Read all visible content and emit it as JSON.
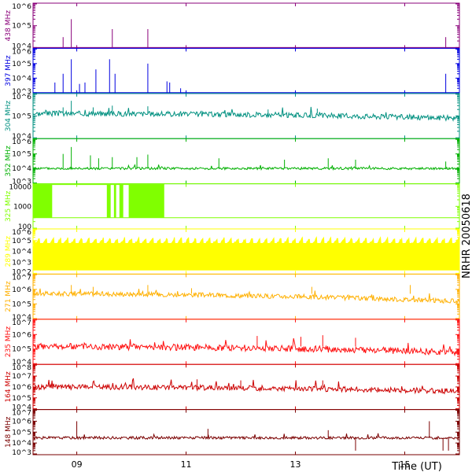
{
  "chart_data": {
    "type": "line",
    "station_label": "NRHR 20050618",
    "x_axis_label": "Time (UT)",
    "x_tick_labels": [
      "09",
      "11",
      "13",
      "15"
    ],
    "x_tick_hours": [
      9,
      11,
      13,
      15
    ],
    "x_range_hours": [
      8.2,
      16.0
    ],
    "panels": [
      {
        "freq_label": "438 MHz",
        "color": "#8a007a",
        "log_scale": true,
        "ylim": [
          10000,
          1000000
        ],
        "yticks": [
          10000,
          100000,
          1000000
        ],
        "ytick_labels": [
          "10^4",
          "10^5",
          "10^6"
        ],
        "baseline": 10000,
        "spikes": [
          [
            8.75,
            30000
          ],
          [
            8.9,
            200000
          ],
          [
            9.65,
            70000
          ],
          [
            10.3,
            70000
          ],
          [
            15.75,
            30000
          ]
        ],
        "style": "spikes"
      },
      {
        "freq_label": "397 MHz",
        "color": "#0000e0",
        "log_scale": true,
        "ylim": [
          1000,
          1000000
        ],
        "yticks": [
          1000,
          10000,
          100000,
          1000000
        ],
        "ytick_labels": [
          "10^3",
          "10^4",
          "10^5",
          "10^6"
        ],
        "baseline": 1000,
        "spikes": [
          [
            8.6,
            5000
          ],
          [
            8.75,
            20000
          ],
          [
            8.9,
            200000
          ],
          [
            9.05,
            4000
          ],
          [
            9.15,
            5000
          ],
          [
            9.35,
            40000
          ],
          [
            9.6,
            200000
          ],
          [
            9.7,
            20000
          ],
          [
            10.3,
            100000
          ],
          [
            10.65,
            6000
          ],
          [
            10.7,
            5000
          ],
          [
            10.9,
            2000
          ],
          [
            15.75,
            20000
          ]
        ],
        "style": "spikes"
      },
      {
        "freq_label": "304 MHz",
        "color": "#009080",
        "log_scale": true,
        "ylim": [
          10000,
          1000000
        ],
        "yticks": [
          10000,
          100000,
          1000000
        ],
        "ytick_labels": [
          "10^4",
          "10^5",
          "10^6"
        ],
        "baseline": 130000,
        "trend_end": 80000,
        "noise": 0.12,
        "seed": 3,
        "spikes": [
          [
            8.75,
            250000
          ],
          [
            8.9,
            500000
          ],
          [
            9.3,
            250000
          ],
          [
            9.65,
            300000
          ],
          [
            10.3,
            280000
          ],
          [
            12.5,
            200000
          ],
          [
            13.4,
            220000
          ]
        ],
        "style": "noisy"
      },
      {
        "freq_label": "352 MHz",
        "color": "#00b000",
        "log_scale": true,
        "ylim": [
          1000,
          1000000
        ],
        "yticks": [
          1000,
          10000,
          100000,
          1000000
        ],
        "ytick_labels": [
          "10^3",
          "10^4",
          "10^5",
          "10^6"
        ],
        "baseline": 10000,
        "trend_end": 10000,
        "noise": 0.08,
        "seed": 5,
        "spikes": [
          [
            8.75,
            100000
          ],
          [
            8.9,
            300000
          ],
          [
            9.25,
            80000
          ],
          [
            9.4,
            50000
          ],
          [
            9.65,
            60000
          ],
          [
            10.1,
            60000
          ],
          [
            10.3,
            90000
          ],
          [
            11.6,
            50000
          ],
          [
            12.8,
            40000
          ],
          [
            13.6,
            50000
          ],
          [
            14.1,
            40000
          ],
          [
            15.75,
            30000
          ]
        ],
        "style": "noisy"
      },
      {
        "freq_label": "325 MHz",
        "color": "#80ff00",
        "log_scale": true,
        "ylim": [
          100,
          10000
        ],
        "yticks": [
          100,
          1000,
          10000
        ],
        "ytick_labels": [
          "100",
          "1000",
          "10000"
        ],
        "high_value": 10000,
        "low_value": 300,
        "high_blocks": [
          [
            8.2,
            8.55
          ],
          [
            9.55,
            9.62
          ],
          [
            9.68,
            9.72
          ],
          [
            9.78,
            9.85
          ],
          [
            9.95,
            10.6
          ]
        ],
        "style": "step"
      },
      {
        "freq_label": "289 MHz",
        "color": "#ffff00",
        "log_scale": true,
        "ylim": [
          100,
          1000000
        ],
        "yticks": [
          100,
          1000,
          10000,
          100000,
          1000000
        ],
        "ytick_labels": [
          "10^2",
          "10^3",
          "10^4",
          "10^5",
          "10^6"
        ],
        "band_low": 200,
        "band_high": 200000,
        "seed": 11,
        "style": "band"
      },
      {
        "freq_label": "271 MHz",
        "color": "#ffb000",
        "log_scale": true,
        "ylim": [
          10000,
          10000000
        ],
        "yticks": [
          10000,
          100000,
          1000000,
          10000000
        ],
        "ytick_labels": [
          "10^4",
          "10^5",
          "10^6",
          "10^7"
        ],
        "baseline": 500000,
        "trend_end": 150000,
        "noise": 0.16,
        "seed": 17,
        "spikes": [
          [
            8.9,
            2000000
          ],
          [
            9.3,
            1500000
          ],
          [
            10.3,
            2000000
          ],
          [
            11.1,
            1200000
          ],
          [
            13.3,
            1500000
          ],
          [
            15.1,
            2000000
          ]
        ],
        "style": "noisy"
      },
      {
        "freq_label": "235 MHz",
        "color": "#ff1010",
        "log_scale": true,
        "ylim": [
          10000,
          10000000
        ],
        "yticks": [
          10000,
          100000,
          1000000,
          10000000
        ],
        "ytick_labels": [
          "10^4",
          "10^5",
          "10^6",
          "10^7"
        ],
        "baseline": 150000,
        "trend_end": 60000,
        "noise": 0.22,
        "seed": 23,
        "spikes": [
          [
            12.3,
            800000
          ],
          [
            13.1,
            700000
          ],
          [
            13.5,
            900000
          ],
          [
            14.1,
            600000
          ]
        ],
        "style": "noisy"
      },
      {
        "freq_label": "164 MHz",
        "color": "#cc0000",
        "log_scale": true,
        "ylim": [
          10000,
          100000000
        ],
        "yticks": [
          10000,
          100000,
          1000000,
          10000000,
          100000000
        ],
        "ytick_labels": [
          "10^4",
          "10^5",
          "10^6",
          "10^7",
          "10^8"
        ],
        "baseline": 1000000,
        "trend_end": 400000,
        "noise": 0.24,
        "seed": 29,
        "spikes": [
          [
            11.2,
            5000000
          ],
          [
            12.0,
            4000000
          ],
          [
            13.5,
            4000000
          ]
        ],
        "style": "noisy"
      },
      {
        "freq_label": "148 MHz",
        "color": "#7a0000",
        "log_scale": true,
        "ylim": [
          1000,
          10000000
        ],
        "yticks": [
          1000,
          10000,
          100000,
          1000000,
          10000000
        ],
        "ytick_labels": [
          "10^3",
          "10^4",
          "10^5",
          "10^6",
          "10^7"
        ],
        "baseline": 30000,
        "trend_end": 30000,
        "noise": 0.12,
        "seed": 31,
        "spikes": [
          [
            9.0,
            1000000
          ],
          [
            15.45,
            1000000
          ],
          [
            11.4,
            200000
          ],
          [
            13.6,
            150000
          ]
        ],
        "dips": [
          [
            14.1,
            2000
          ],
          [
            15.7,
            2000
          ],
          [
            15.8,
            2000
          ]
        ],
        "style": "noisy"
      }
    ]
  }
}
